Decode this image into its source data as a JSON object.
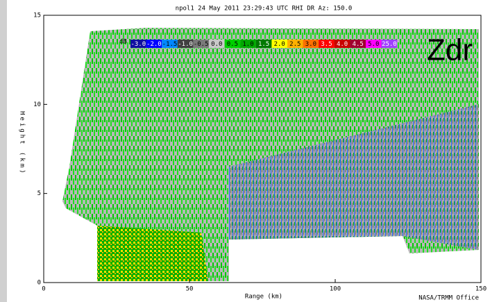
{
  "chart_data": {
    "type": "rhi",
    "title": "npol1  24 May 2011 23:29:43 UTC  RHI  DR  Az: 150.0",
    "xlabel": "Range (km)",
    "ylabel": "Height (km)",
    "xlim": [
      0,
      150
    ],
    "ylim": [
      0,
      15
    ],
    "xticks": [
      0,
      50,
      100,
      150
    ],
    "yticks": [
      0,
      5,
      10,
      15
    ],
    "annotation": "Zdr",
    "footer": "NASA/TRMM Office",
    "colorbar": {
      "unit": "dB",
      "labels": [
        "-3.0",
        "-2.0",
        "-1.5",
        "-1.0",
        "-0.5",
        "0.0",
        "0.5",
        "1.0",
        "1.5",
        "2.0",
        "2.5",
        "3.0",
        "3.5",
        "4.0",
        "4.5",
        "5.0",
        "25.0"
      ],
      "colors": [
        "#1010a0",
        "#0000ff",
        "#0088ff",
        "#404040",
        "#7a7a7a",
        "#c8c8c8",
        "#00d000",
        "#00a800",
        "#007800",
        "#ffff00",
        "#ffb000",
        "#ff7000",
        "#ff0000",
        "#c80000",
        "#a00030",
        "#ff00ff",
        "#a040ff"
      ]
    }
  }
}
